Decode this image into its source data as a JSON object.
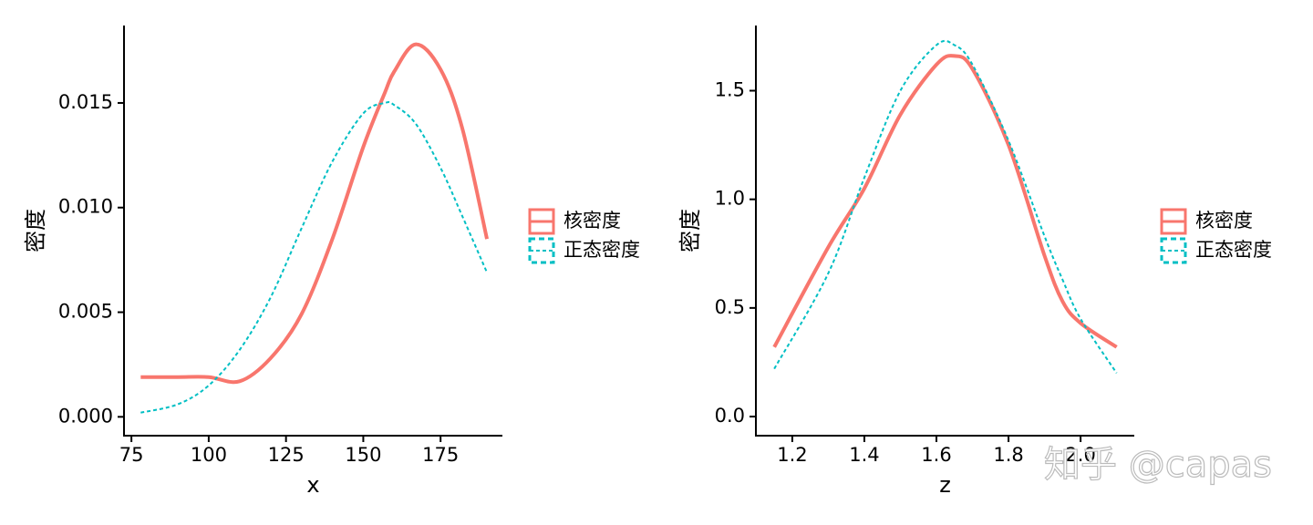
{
  "chart_data": [
    {
      "type": "line",
      "x_label": "x",
      "y_label": "密度",
      "x": [
        78,
        90,
        100,
        110,
        120,
        130,
        140,
        150,
        157,
        160,
        167,
        175,
        182,
        190
      ],
      "series": [
        {
          "name": "核密度",
          "color": "#F8766D",
          "dash": false,
          "values": [
            0.0019,
            0.0019,
            0.0019,
            0.0017,
            0.0028,
            0.0049,
            0.0085,
            0.0129,
            0.0155,
            0.0165,
            0.0178,
            0.0166,
            0.0138,
            0.0085
          ]
        },
        {
          "name": "正态密度",
          "color": "#00BFC4",
          "dash": true,
          "values": [
            0.0002,
            0.0006,
            0.0015,
            0.0032,
            0.0057,
            0.009,
            0.0122,
            0.0145,
            0.015,
            0.0149,
            0.014,
            0.0119,
            0.0096,
            0.0069
          ]
        }
      ],
      "xlim": [
        72.6,
        195
      ],
      "xticks": [
        75,
        100,
        125,
        150,
        175
      ],
      "ylim": [
        -0.0009,
        0.0187
      ],
      "yticks": [
        {
          "value": 0,
          "label": "0.000"
        },
        {
          "value": 0.005,
          "label": "0.005"
        },
        {
          "value": 0.01,
          "label": "0.010"
        },
        {
          "value": 0.015,
          "label": "0.015"
        }
      ],
      "grid": false
    },
    {
      "type": "line",
      "x_label": "z",
      "y_label": "密度",
      "x": [
        1.15,
        1.3,
        1.4,
        1.5,
        1.6,
        1.65,
        1.7,
        1.8,
        1.9,
        1.95,
        2.0,
        2.1
      ],
      "series": [
        {
          "name": "核密度",
          "color": "#F8766D",
          "dash": false,
          "values": [
            0.32,
            0.78,
            1.05,
            1.39,
            1.62,
            1.66,
            1.6,
            1.25,
            0.74,
            0.53,
            0.43,
            0.32
          ]
        },
        {
          "name": "正态密度",
          "color": "#00BFC4",
          "dash": true,
          "values": [
            0.22,
            0.66,
            1.1,
            1.5,
            1.71,
            1.71,
            1.62,
            1.27,
            0.83,
            0.63,
            0.45,
            0.2
          ]
        }
      ],
      "xlim": [
        1.099,
        2.149
      ],
      "xticks": [
        1.2,
        1.4,
        1.6,
        1.8,
        {
          "value": 2,
          "label": "2.0"
        }
      ],
      "ylim": [
        -0.088,
        1.8
      ],
      "yticks": [
        {
          "value": 0,
          "label": "0.0"
        },
        {
          "value": 0.5,
          "label": "0.5"
        },
        {
          "value": 1,
          "label": "1.0"
        },
        {
          "value": 1.5,
          "label": "1.5"
        }
      ],
      "grid": false
    }
  ],
  "watermark": "知乎 @capas"
}
